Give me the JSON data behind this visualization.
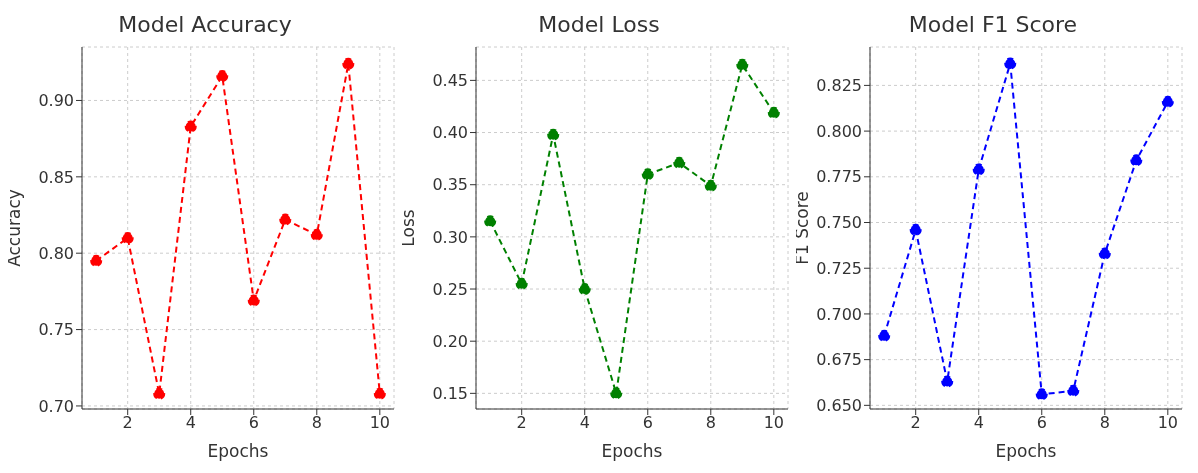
{
  "chart_data": [
    {
      "type": "line",
      "title": "Model Accuracy",
      "xlabel": "Epochs",
      "ylabel": "Accuracy",
      "x": [
        1,
        2,
        3,
        4,
        5,
        6,
        7,
        8,
        9,
        10
      ],
      "series": [
        {
          "color": "#ff0000",
          "values": [
            0.795,
            0.81,
            0.708,
            0.883,
            0.916,
            0.769,
            0.822,
            0.812,
            0.924,
            0.708
          ]
        }
      ],
      "xlim": [
        0.55,
        10.45
      ],
      "xticks": [
        2,
        4,
        6,
        8,
        10
      ],
      "ylim": [
        0.698,
        0.935
      ],
      "yticks": [
        {
          "value": 0.7,
          "label": "0.70"
        },
        {
          "value": 0.75,
          "label": "0.75"
        },
        {
          "value": 0.8,
          "label": "0.80"
        },
        {
          "value": 0.85,
          "label": "0.85"
        },
        {
          "value": 0.9,
          "label": "0.90"
        }
      ],
      "grid": true,
      "marker": "circle",
      "line_style": "dashed"
    },
    {
      "type": "line",
      "title": "Model Loss",
      "xlabel": "Epochs",
      "ylabel": "Loss",
      "x": [
        1,
        2,
        3,
        4,
        5,
        6,
        7,
        8,
        9,
        10
      ],
      "series": [
        {
          "color": "#008000",
          "values": [
            0.315,
            0.255,
            0.398,
            0.25,
            0.15,
            0.36,
            0.371,
            0.349,
            0.465,
            0.419
          ]
        }
      ],
      "xlim": [
        0.55,
        10.45
      ],
      "xticks": [
        2,
        4,
        6,
        8,
        10
      ],
      "ylim": [
        0.135,
        0.482
      ],
      "yticks": [
        0.15,
        {
          "value": 0.2,
          "label": "0.20"
        },
        0.25,
        {
          "value": 0.3,
          "label": "0.30"
        },
        0.35,
        {
          "value": 0.4,
          "label": "0.40"
        },
        0.45
      ],
      "grid": true,
      "marker": "circle",
      "line_style": "dashed"
    },
    {
      "type": "line",
      "title": "Model F1 Score",
      "xlabel": "Epochs",
      "ylabel": "F1 Score",
      "x": [
        1,
        2,
        3,
        4,
        5,
        6,
        7,
        8,
        9,
        10
      ],
      "series": [
        {
          "color": "#0000ff",
          "values": [
            0.688,
            0.746,
            0.663,
            0.779,
            0.837,
            0.656,
            0.658,
            0.733,
            0.784,
            0.816
          ]
        }
      ],
      "xlim": [
        0.55,
        10.45
      ],
      "xticks": [
        2,
        4,
        6,
        8,
        10
      ],
      "ylim": [
        0.648,
        0.846
      ],
      "yticks": [
        {
          "value": 0.65,
          "label": "0.650"
        },
        0.675,
        {
          "value": 0.7,
          "label": "0.700"
        },
        0.725,
        {
          "value": 0.75,
          "label": "0.750"
        },
        0.775,
        {
          "value": 0.8,
          "label": "0.800"
        },
        0.825
      ],
      "grid": true,
      "marker": "circle",
      "line_style": "dashed"
    }
  ]
}
